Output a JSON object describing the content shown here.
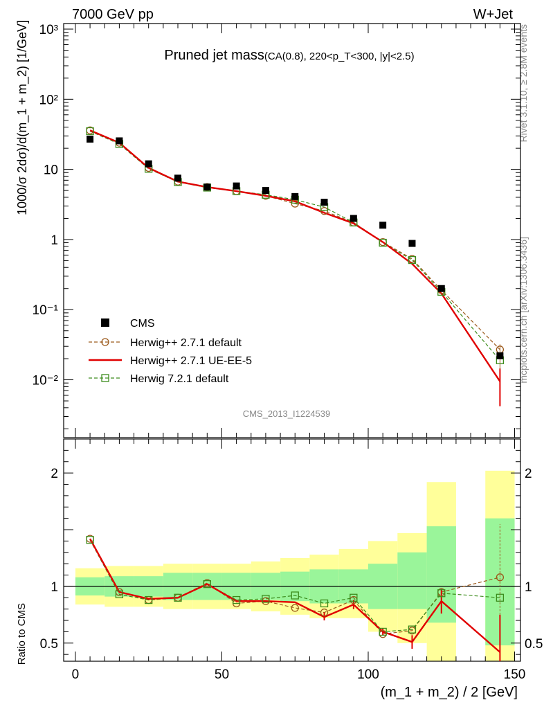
{
  "header": {
    "left": "7000 GeV pp",
    "right": "W+Jet"
  },
  "side_labels": {
    "rivet": "Rivet 3.1.10, ≥ 2.8M events",
    "mcplots": "mcplots.cern.ch [arXiv:1306.3436]"
  },
  "watermark": "CMS_2013_I1224539",
  "chart_data": [
    {
      "type": "scatter",
      "title": "Pruned jet mass",
      "subtitle": "(CA(0.8), 220<p_T<300, |y|<2.5)",
      "ylabel": "1000/σ 2dσ)/d(m_1 + m_2) [1/GeV]",
      "xlabel": "",
      "yscale": "log",
      "ylim": [
        0.0015,
        1200
      ],
      "xlim": [
        -4,
        152
      ],
      "yticks": [
        {
          "v": 1000,
          "label": "10³"
        },
        {
          "v": 100,
          "label": "10²"
        },
        {
          "v": 10,
          "label": "10"
        },
        {
          "v": 1,
          "label": "1"
        },
        {
          "v": 0.1,
          "label": "10⁻¹"
        },
        {
          "v": 0.01,
          "label": "10⁻²"
        }
      ],
      "legend_position": "lower-left",
      "x": [
        5,
        15,
        25,
        35,
        45,
        55,
        65,
        75,
        85,
        95,
        105,
        115,
        125,
        145
      ],
      "series": [
        {
          "name": "CMS",
          "color": "#000000",
          "style": "data-square",
          "values": [
            27,
            25.5,
            12,
            7.5,
            5.6,
            5.8,
            5.0,
            4.1,
            3.4,
            2.0,
            1.6,
            0.88,
            0.2,
            0.022
          ]
        },
        {
          "name": "Herwig++ 2.7.1 default",
          "color": "#9c5a1c",
          "style": "dashed-circle",
          "values": [
            36,
            24,
            10.5,
            6.7,
            5.6,
            4.9,
            4.2,
            3.25,
            2.55,
            1.75,
            0.92,
            0.53,
            0.19,
            0.027
          ]
        },
        {
          "name": "Herwig++ 2.7.1 UE-EE-5",
          "color": "#e00000",
          "style": "solid",
          "values": [
            36,
            24,
            10.5,
            6.7,
            5.6,
            4.9,
            4.2,
            3.5,
            2.4,
            1.7,
            0.92,
            0.45,
            0.17,
            0.0095
          ]
        },
        {
          "name": "Herwig 7.2.1 default",
          "color": "#3c8c1c",
          "style": "dashed-square",
          "values": [
            35,
            23,
            10.2,
            6.6,
            5.5,
            4.9,
            4.35,
            3.7,
            2.9,
            1.75,
            0.9,
            0.51,
            0.18,
            0.019
          ]
        }
      ]
    },
    {
      "type": "scatter",
      "ylabel": "Ratio to CMS",
      "xlabel": "(m_1 + m_2) / 2 [GeV]",
      "ylim": [
        0.34,
        2.3
      ],
      "xlim": [
        -4,
        152
      ],
      "yticks": [
        {
          "v": 2,
          "label": "2"
        },
        {
          "v": 1,
          "label": "1"
        },
        {
          "v": 0.5,
          "label": "0.5"
        }
      ],
      "xticks": [
        0,
        50,
        100,
        150
      ],
      "bins": [
        [
          0,
          10
        ],
        [
          10,
          20
        ],
        [
          20,
          30
        ],
        [
          30,
          40
        ],
        [
          40,
          50
        ],
        [
          50,
          60
        ],
        [
          60,
          70
        ],
        [
          70,
          80
        ],
        [
          80,
          90
        ],
        [
          90,
          100
        ],
        [
          100,
          110
        ],
        [
          110,
          120
        ],
        [
          120,
          130
        ],
        [
          140,
          150
        ]
      ],
      "band_stat": [
        [
          0.92,
          1.08
        ],
        [
          0.91,
          1.09
        ],
        [
          0.91,
          1.09
        ],
        [
          0.88,
          1.12
        ],
        [
          0.88,
          1.12
        ],
        [
          0.88,
          1.12
        ],
        [
          0.88,
          1.12
        ],
        [
          0.87,
          1.13
        ],
        [
          0.85,
          1.15
        ],
        [
          0.85,
          1.15
        ],
        [
          0.8,
          1.2
        ],
        [
          0.8,
          1.3
        ],
        [
          0.68,
          1.53
        ],
        [
          0.48,
          1.6
        ]
      ],
      "band_total": [
        [
          0.84,
          1.16
        ],
        [
          0.82,
          1.18
        ],
        [
          0.82,
          1.18
        ],
        [
          0.8,
          1.2
        ],
        [
          0.8,
          1.2
        ],
        [
          0.8,
          1.2
        ],
        [
          0.78,
          1.22
        ],
        [
          0.75,
          1.25
        ],
        [
          0.72,
          1.28
        ],
        [
          0.72,
          1.33
        ],
        [
          0.6,
          1.4
        ],
        [
          0.5,
          1.47
        ],
        [
          0.34,
          1.92
        ],
        [
          0.34,
          2.02
        ]
      ],
      "x": [
        5,
        15,
        25,
        35,
        45,
        55,
        65,
        75,
        85,
        95,
        105,
        115,
        125,
        145
      ],
      "series": [
        {
          "name": "Herwig++ 2.7.1 default",
          "color": "#9c5a1c",
          "values": [
            1.42,
            0.95,
            0.88,
            0.9,
            1.03,
            0.85,
            0.87,
            0.81,
            0.77,
            0.88,
            0.58,
            0.61,
            0.95,
            1.08
          ]
        },
        {
          "name": "Herwig++ 2.7.1 UE-EE-5",
          "color": "#e00000",
          "values": [
            1.42,
            0.95,
            0.89,
            0.9,
            1.02,
            0.87,
            0.87,
            0.86,
            0.73,
            0.84,
            0.6,
            0.51,
            0.87,
            0.42
          ]
        },
        {
          "name": "Herwig 7.2.1 default",
          "color": "#3c8c1c",
          "values": [
            1.41,
            0.93,
            0.88,
            0.9,
            1.02,
            0.88,
            0.89,
            0.92,
            0.85,
            0.9,
            0.6,
            0.62,
            0.94,
            0.9
          ]
        }
      ]
    }
  ]
}
